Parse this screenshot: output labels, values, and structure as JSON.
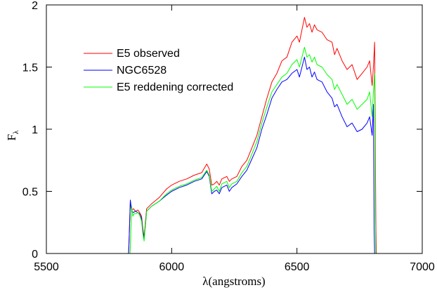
{
  "chart_data": {
    "type": "line",
    "title": "",
    "xlabel": "λ(angstroms)",
    "ylabel_main": "F",
    "ylabel_sub": "λ",
    "xlim": [
      5500,
      7000
    ],
    "ylim": [
      0,
      2
    ],
    "xticks": [
      5500,
      6000,
      6500,
      7000
    ],
    "yticks": [
      0,
      0.5,
      1,
      1.5,
      2
    ],
    "ytick_labels": [
      "0",
      "0.5",
      "1",
      "1.5",
      "2"
    ],
    "grid": false,
    "legend_position": "upper-left",
    "series": [
      {
        "name": "E5 observed",
        "color": "#ff0000",
        "points": [
          [
            5828,
            0
          ],
          [
            5830,
            0.1
          ],
          [
            5835,
            0.42
          ],
          [
            5840,
            0.35
          ],
          [
            5848,
            0.36
          ],
          [
            5855,
            0.34
          ],
          [
            5865,
            0.35
          ],
          [
            5872,
            0.33
          ],
          [
            5880,
            0.3
          ],
          [
            5885,
            0.2
          ],
          [
            5890,
            0.13
          ],
          [
            5895,
            0.25
          ],
          [
            5900,
            0.36
          ],
          [
            5920,
            0.4
          ],
          [
            5950,
            0.45
          ],
          [
            5980,
            0.52
          ],
          [
            6000,
            0.55
          ],
          [
            6030,
            0.58
          ],
          [
            6060,
            0.6
          ],
          [
            6090,
            0.63
          ],
          [
            6120,
            0.65
          ],
          [
            6140,
            0.72
          ],
          [
            6150,
            0.68
          ],
          [
            6160,
            0.55
          ],
          [
            6170,
            0.56
          ],
          [
            6180,
            0.58
          ],
          [
            6190,
            0.55
          ],
          [
            6200,
            0.6
          ],
          [
            6220,
            0.62
          ],
          [
            6230,
            0.58
          ],
          [
            6240,
            0.6
          ],
          [
            6260,
            0.62
          ],
          [
            6280,
            0.7
          ],
          [
            6300,
            0.75
          ],
          [
            6320,
            0.85
          ],
          [
            6340,
            0.95
          ],
          [
            6360,
            1.1
          ],
          [
            6380,
            1.25
          ],
          [
            6400,
            1.38
          ],
          [
            6420,
            1.45
          ],
          [
            6440,
            1.55
          ],
          [
            6460,
            1.58
          ],
          [
            6480,
            1.7
          ],
          [
            6500,
            1.75
          ],
          [
            6510,
            1.7
          ],
          [
            6520,
            1.8
          ],
          [
            6530,
            1.9
          ],
          [
            6540,
            1.82
          ],
          [
            6550,
            1.85
          ],
          [
            6560,
            1.78
          ],
          [
            6570,
            1.84
          ],
          [
            6580,
            1.8
          ],
          [
            6600,
            1.78
          ],
          [
            6620,
            1.72
          ],
          [
            6640,
            1.7
          ],
          [
            6650,
            1.6
          ],
          [
            6660,
            1.65
          ],
          [
            6680,
            1.55
          ],
          [
            6700,
            1.48
          ],
          [
            6720,
            1.52
          ],
          [
            6740,
            1.4
          ],
          [
            6760,
            1.45
          ],
          [
            6780,
            1.5
          ],
          [
            6790,
            1.55
          ],
          [
            6800,
            1.35
          ],
          [
            6805,
            1.5
          ],
          [
            6810,
            1.7
          ],
          [
            6815,
            0.2
          ],
          [
            6817,
            0
          ]
        ]
      },
      {
        "name": "NGC6528",
        "color": "#0000ff",
        "points": [
          [
            5828,
            0
          ],
          [
            5830,
            0.1
          ],
          [
            5835,
            0.43
          ],
          [
            5840,
            0.34
          ],
          [
            5848,
            0.33
          ],
          [
            5855,
            0.34
          ],
          [
            5865,
            0.33
          ],
          [
            5872,
            0.32
          ],
          [
            5880,
            0.28
          ],
          [
            5885,
            0.18
          ],
          [
            5890,
            0.12
          ],
          [
            5895,
            0.22
          ],
          [
            5900,
            0.34
          ],
          [
            5920,
            0.38
          ],
          [
            5950,
            0.42
          ],
          [
            5980,
            0.47
          ],
          [
            6000,
            0.5
          ],
          [
            6030,
            0.53
          ],
          [
            6060,
            0.55
          ],
          [
            6090,
            0.58
          ],
          [
            6120,
            0.6
          ],
          [
            6140,
            0.66
          ],
          [
            6150,
            0.62
          ],
          [
            6160,
            0.48
          ],
          [
            6170,
            0.5
          ],
          [
            6180,
            0.51
          ],
          [
            6190,
            0.48
          ],
          [
            6200,
            0.53
          ],
          [
            6220,
            0.55
          ],
          [
            6230,
            0.5
          ],
          [
            6240,
            0.53
          ],
          [
            6260,
            0.56
          ],
          [
            6280,
            0.62
          ],
          [
            6300,
            0.67
          ],
          [
            6320,
            0.76
          ],
          [
            6340,
            0.85
          ],
          [
            6360,
            1.0
          ],
          [
            6380,
            1.12
          ],
          [
            6400,
            1.25
          ],
          [
            6420,
            1.32
          ],
          [
            6440,
            1.38
          ],
          [
            6460,
            1.4
          ],
          [
            6480,
            1.45
          ],
          [
            6500,
            1.48
          ],
          [
            6510,
            1.42
          ],
          [
            6520,
            1.5
          ],
          [
            6530,
            1.58
          ],
          [
            6540,
            1.48
          ],
          [
            6550,
            1.5
          ],
          [
            6560,
            1.42
          ],
          [
            6570,
            1.46
          ],
          [
            6580,
            1.4
          ],
          [
            6600,
            1.38
          ],
          [
            6620,
            1.3
          ],
          [
            6640,
            1.25
          ],
          [
            6650,
            1.18
          ],
          [
            6660,
            1.2
          ],
          [
            6680,
            1.1
          ],
          [
            6700,
            1.02
          ],
          [
            6720,
            1.05
          ],
          [
            6740,
            0.98
          ],
          [
            6760,
            1.0
          ],
          [
            6780,
            1.05
          ],
          [
            6790,
            1.1
          ],
          [
            6800,
            0.95
          ],
          [
            6805,
            1.2
          ],
          [
            6808,
            0.2
          ],
          [
            6810,
            0
          ]
        ]
      },
      {
        "name": "E5 reddening corrected",
        "color": "#00ff00",
        "points": [
          [
            5834,
            0
          ],
          [
            5836,
            0.1
          ],
          [
            5840,
            0.38
          ],
          [
            5845,
            0.3
          ],
          [
            5850,
            0.32
          ],
          [
            5858,
            0.32
          ],
          [
            5865,
            0.33
          ],
          [
            5872,
            0.31
          ],
          [
            5880,
            0.26
          ],
          [
            5885,
            0.16
          ],
          [
            5890,
            0.1
          ],
          [
            5895,
            0.22
          ],
          [
            5900,
            0.34
          ],
          [
            5920,
            0.38
          ],
          [
            5950,
            0.42
          ],
          [
            5980,
            0.48
          ],
          [
            6000,
            0.51
          ],
          [
            6030,
            0.54
          ],
          [
            6060,
            0.56
          ],
          [
            6090,
            0.59
          ],
          [
            6120,
            0.61
          ],
          [
            6140,
            0.67
          ],
          [
            6150,
            0.63
          ],
          [
            6160,
            0.5
          ],
          [
            6170,
            0.52
          ],
          [
            6180,
            0.54
          ],
          [
            6190,
            0.5
          ],
          [
            6200,
            0.56
          ],
          [
            6220,
            0.58
          ],
          [
            6230,
            0.53
          ],
          [
            6240,
            0.56
          ],
          [
            6260,
            0.58
          ],
          [
            6280,
            0.65
          ],
          [
            6300,
            0.7
          ],
          [
            6320,
            0.8
          ],
          [
            6340,
            0.9
          ],
          [
            6360,
            1.05
          ],
          [
            6380,
            1.18
          ],
          [
            6400,
            1.3
          ],
          [
            6420,
            1.36
          ],
          [
            6440,
            1.42
          ],
          [
            6460,
            1.45
          ],
          [
            6480,
            1.52
          ],
          [
            6500,
            1.56
          ],
          [
            6510,
            1.5
          ],
          [
            6520,
            1.58
          ],
          [
            6530,
            1.66
          ],
          [
            6540,
            1.58
          ],
          [
            6550,
            1.6
          ],
          [
            6560,
            1.54
          ],
          [
            6570,
            1.58
          ],
          [
            6580,
            1.52
          ],
          [
            6600,
            1.5
          ],
          [
            6620,
            1.44
          ],
          [
            6640,
            1.4
          ],
          [
            6650,
            1.32
          ],
          [
            6660,
            1.36
          ],
          [
            6680,
            1.28
          ],
          [
            6700,
            1.2
          ],
          [
            6720,
            1.24
          ],
          [
            6740,
            1.16
          ],
          [
            6760,
            1.2
          ],
          [
            6780,
            1.24
          ],
          [
            6790,
            1.3
          ],
          [
            6800,
            1.1
          ],
          [
            6805,
            1.3
          ],
          [
            6810,
            1.45
          ],
          [
            6813,
            0.3
          ],
          [
            6815,
            0
          ]
        ]
      }
    ]
  }
}
